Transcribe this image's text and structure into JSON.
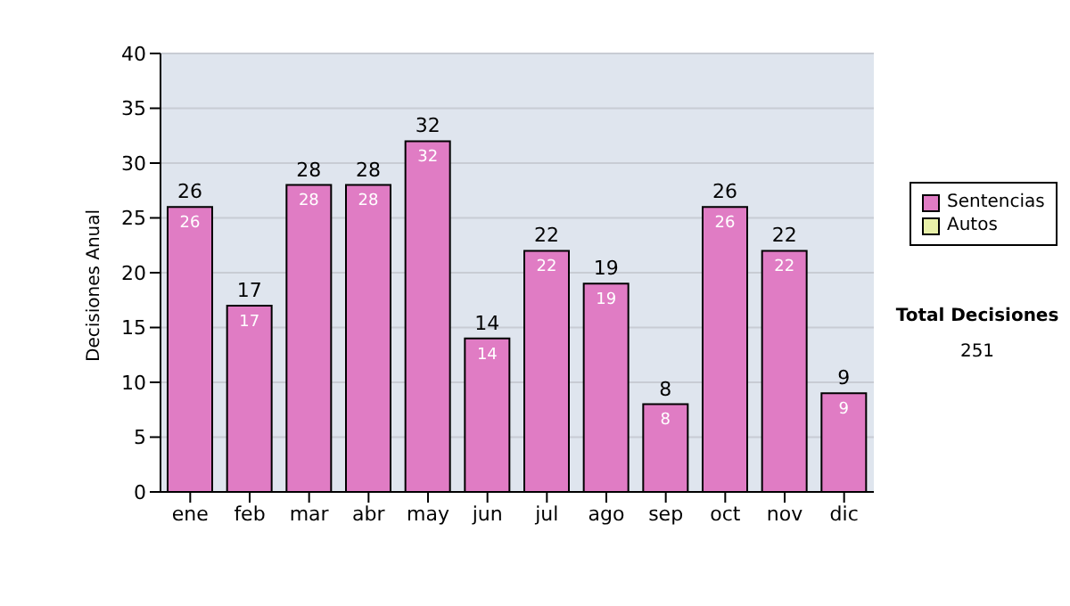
{
  "chart_data": {
    "type": "bar",
    "ylabel": "Decisiones Anual",
    "categories": [
      "ene",
      "feb",
      "mar",
      "abr",
      "may",
      "jun",
      "jul",
      "ago",
      "sep",
      "oct",
      "nov",
      "dic"
    ],
    "series": [
      {
        "name": "Sentencias",
        "color": "#e07cc4",
        "values": [
          26,
          17,
          28,
          28,
          32,
          14,
          22,
          19,
          8,
          26,
          22,
          9
        ]
      },
      {
        "name": "Autos",
        "color": "#e8f0a8",
        "values": [
          null,
          null,
          null,
          null,
          null,
          null,
          null,
          null,
          null,
          null,
          null,
          null
        ]
      }
    ],
    "stacked": true,
    "totals": [
      "26",
      "17",
      "28",
      "28",
      "32",
      "14",
      "22",
      "19",
      "8",
      "26",
      "22",
      "9"
    ],
    "data_labels": true,
    "ylim": [
      0,
      40
    ],
    "yticks": [
      0,
      5,
      10,
      15,
      20,
      25,
      30,
      35,
      40
    ],
    "grid": "y",
    "legend": "right",
    "annotations": [
      "Total Decisiones",
      "251"
    ]
  }
}
